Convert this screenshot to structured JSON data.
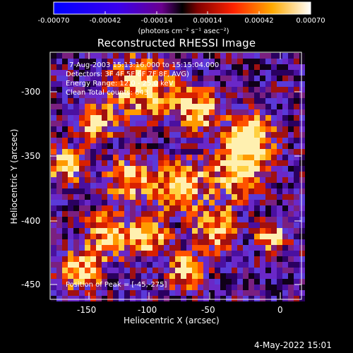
{
  "colorbar": {
    "tick_labels": [
      "-0.00070",
      "-0.00042",
      "-0.00014",
      "0.00014",
      "0.00042",
      "0.00070"
    ],
    "units": "(photons cm⁻² s⁻¹ asec⁻²)"
  },
  "plot": {
    "title": "Reconstructed RHESSI Image",
    "annotations": {
      "time": "7-Aug-2003 15:13:16.000 to 15:15:04.000",
      "detectors": "Detectors: 3F 4F 5F 6F 7F 8F, AVG)",
      "energy": "Energy Range: 12.0 - 25.0 keV",
      "counts": "Clean    Total counts: 643",
      "peak": "Position of Peak = [-45,-275]"
    },
    "x_axis": {
      "title": "Heliocentric X (arcsec)",
      "tick_labels": [
        "-150",
        "-100",
        "-50",
        "0"
      ]
    },
    "y_axis": {
      "title": "Heliocentric Y (arcsec)",
      "tick_labels": [
        "-300",
        "-350",
        "-400",
        "-450"
      ]
    }
  },
  "footer": {
    "timestamp": "4-May-2022 15:01"
  },
  "colors": {
    "background": "#000000",
    "axis": "#ffffff"
  }
}
